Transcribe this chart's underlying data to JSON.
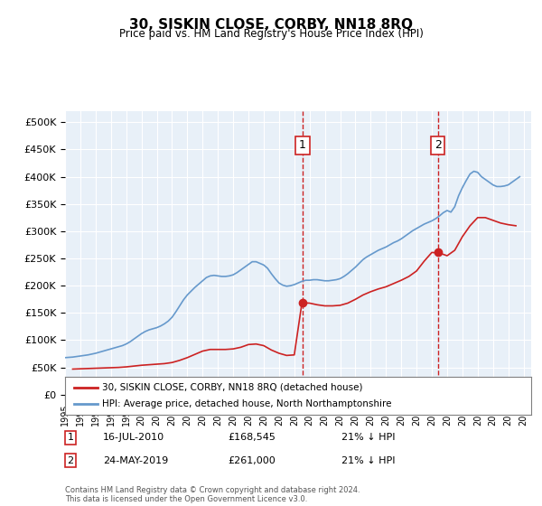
{
  "title": "30, SISKIN CLOSE, CORBY, NN18 8RQ",
  "subtitle": "Price paid vs. HM Land Registry's House Price Index (HPI)",
  "background_color": "#e8f0f8",
  "plot_background": "#e8f0f8",
  "ylim": [
    0,
    520000
  ],
  "yticks": [
    0,
    50000,
    100000,
    150000,
    200000,
    250000,
    300000,
    350000,
    400000,
    450000,
    500000
  ],
  "ytick_labels": [
    "£0",
    "£50K",
    "£100K",
    "£150K",
    "£200K",
    "£250K",
    "£300K",
    "£350K",
    "£400K",
    "£450K",
    "£500K"
  ],
  "xlim_start": 1995.0,
  "xlim_end": 2025.5,
  "xticks": [
    1995,
    1996,
    1997,
    1998,
    1999,
    2000,
    2001,
    2002,
    2003,
    2004,
    2005,
    2006,
    2007,
    2008,
    2009,
    2010,
    2011,
    2012,
    2013,
    2014,
    2015,
    2016,
    2017,
    2018,
    2019,
    2020,
    2021,
    2022,
    2023,
    2024,
    2025
  ],
  "hpi_color": "#6699cc",
  "sale_color": "#cc2222",
  "marker1_date": 2010.54,
  "marker1_price": 168545,
  "marker2_date": 2019.39,
  "marker2_price": 261000,
  "legend_label1": "30, SISKIN CLOSE, CORBY, NN18 8RQ (detached house)",
  "legend_label2": "HPI: Average price, detached house, North Northamptonshire",
  "annotation1_label": "16-JUL-2010",
  "annotation1_price": "£168,545",
  "annotation1_hpi": "21% ↓ HPI",
  "annotation2_label": "24-MAY-2019",
  "annotation2_price": "£261,000",
  "annotation2_hpi": "21% ↓ HPI",
  "footer": "Contains HM Land Registry data © Crown copyright and database right 2024.\nThis data is licensed under the Open Government Licence v3.0.",
  "hpi_data": {
    "x": [
      1995.0,
      1995.25,
      1995.5,
      1995.75,
      1996.0,
      1996.25,
      1996.5,
      1996.75,
      1997.0,
      1997.25,
      1997.5,
      1997.75,
      1998.0,
      1998.25,
      1998.5,
      1998.75,
      1999.0,
      1999.25,
      1999.5,
      1999.75,
      2000.0,
      2000.25,
      2000.5,
      2000.75,
      2001.0,
      2001.25,
      2001.5,
      2001.75,
      2002.0,
      2002.25,
      2002.5,
      2002.75,
      2003.0,
      2003.25,
      2003.5,
      2003.75,
      2004.0,
      2004.25,
      2004.5,
      2004.75,
      2005.0,
      2005.25,
      2005.5,
      2005.75,
      2006.0,
      2006.25,
      2006.5,
      2006.75,
      2007.0,
      2007.25,
      2007.5,
      2007.75,
      2008.0,
      2008.25,
      2008.5,
      2008.75,
      2009.0,
      2009.25,
      2009.5,
      2009.75,
      2010.0,
      2010.25,
      2010.5,
      2010.75,
      2011.0,
      2011.25,
      2011.5,
      2011.75,
      2012.0,
      2012.25,
      2012.5,
      2012.75,
      2013.0,
      2013.25,
      2013.5,
      2013.75,
      2014.0,
      2014.25,
      2014.5,
      2014.75,
      2015.0,
      2015.25,
      2015.5,
      2015.75,
      2016.0,
      2016.25,
      2016.5,
      2016.75,
      2017.0,
      2017.25,
      2017.5,
      2017.75,
      2018.0,
      2018.25,
      2018.5,
      2018.75,
      2019.0,
      2019.25,
      2019.5,
      2019.75,
      2020.0,
      2020.25,
      2020.5,
      2020.75,
      2021.0,
      2021.25,
      2021.5,
      2021.75,
      2022.0,
      2022.25,
      2022.5,
      2022.75,
      2023.0,
      2023.25,
      2023.5,
      2023.75,
      2024.0,
      2024.25,
      2024.5,
      2024.75
    ],
    "y": [
      68000,
      68500,
      69000,
      70000,
      71000,
      72000,
      73000,
      74500,
      76000,
      78000,
      80000,
      82000,
      84000,
      86000,
      88000,
      90000,
      93000,
      97000,
      102000,
      107000,
      112000,
      116000,
      119000,
      121000,
      123000,
      126000,
      130000,
      135000,
      142000,
      152000,
      163000,
      174000,
      183000,
      190000,
      197000,
      203000,
      209000,
      215000,
      218000,
      219000,
      218000,
      217000,
      217000,
      218000,
      220000,
      224000,
      229000,
      234000,
      239000,
      244000,
      244000,
      241000,
      238000,
      232000,
      222000,
      213000,
      205000,
      201000,
      199000,
      200000,
      202000,
      205000,
      208000,
      210000,
      210000,
      211000,
      211000,
      210000,
      209000,
      209000,
      210000,
      211000,
      213000,
      217000,
      222000,
      228000,
      234000,
      241000,
      248000,
      253000,
      257000,
      261000,
      265000,
      268000,
      271000,
      275000,
      279000,
      282000,
      286000,
      291000,
      296000,
      301000,
      305000,
      309000,
      313000,
      316000,
      319000,
      323000,
      328000,
      334000,
      338000,
      335000,
      345000,
      365000,
      380000,
      393000,
      405000,
      410000,
      408000,
      400000,
      395000,
      390000,
      385000,
      382000,
      382000,
      383000,
      385000,
      390000,
      395000,
      400000
    ]
  },
  "sale_data": {
    "x": [
      1995.5,
      1996.0,
      1996.5,
      1997.0,
      1997.5,
      1998.0,
      1998.5,
      1999.0,
      1999.5,
      2000.0,
      2000.5,
      2001.0,
      2001.5,
      2002.0,
      2002.5,
      2003.0,
      2003.5,
      2004.0,
      2004.5,
      2005.0,
      2005.5,
      2006.0,
      2006.5,
      2007.0,
      2007.5,
      2008.0,
      2008.5,
      2009.0,
      2009.5,
      2010.0,
      2010.5,
      2011.0,
      2011.5,
      2012.0,
      2012.5,
      2013.0,
      2013.5,
      2014.0,
      2014.5,
      2015.0,
      2015.5,
      2016.0,
      2016.5,
      2017.0,
      2017.5,
      2018.0,
      2018.5,
      2019.0,
      2019.5,
      2020.0,
      2020.5,
      2021.0,
      2021.5,
      2022.0,
      2022.5,
      2023.0,
      2023.5,
      2024.0,
      2024.5
    ],
    "y": [
      47000,
      47500,
      48000,
      48500,
      49000,
      49500,
      50000,
      51000,
      52500,
      54000,
      55000,
      56000,
      57000,
      59000,
      63000,
      68000,
      74000,
      80000,
      83000,
      83000,
      83000,
      84000,
      87000,
      92000,
      93000,
      90000,
      82000,
      76000,
      72000,
      73000,
      168545,
      168000,
      165000,
      163000,
      163000,
      164000,
      168000,
      175000,
      183000,
      189000,
      194000,
      198000,
      204000,
      210000,
      217000,
      227000,
      245000,
      261000,
      260000,
      255000,
      265000,
      290000,
      310000,
      325000,
      325000,
      320000,
      315000,
      312000,
      310000
    ]
  }
}
